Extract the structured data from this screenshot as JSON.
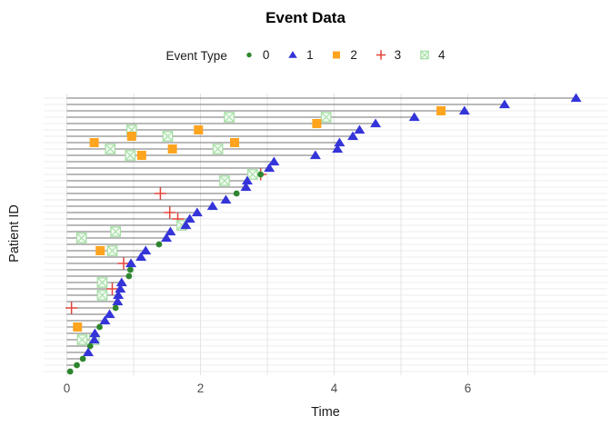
{
  "title": "Event Data",
  "chart_data": {
    "type": "scatter",
    "title": "Event Data",
    "xlabel": "Time",
    "ylabel": "Patient ID",
    "x_ticks": [
      0,
      2,
      4,
      6
    ],
    "xlim": [
      0,
      7.8
    ],
    "grid": "light horizontal line per patient plus vertical gridlines at integer times",
    "legend": {
      "title": "Event Type",
      "position": "top",
      "items": [
        {
          "label": "0",
          "marker": "0"
        },
        {
          "label": "1",
          "marker": "1"
        },
        {
          "label": "2",
          "marker": "2"
        },
        {
          "label": "3",
          "marker": "3"
        },
        {
          "label": "4",
          "marker": "4"
        }
      ]
    },
    "markers": {
      "0": "filled-circle",
      "1": "filled-triangle",
      "2": "filled-square",
      "3": "plus-cross",
      "4": "crossed-open-square"
    },
    "colors": {
      "type0": "#2d862d",
      "type1": "#3434d9",
      "type2": "#ffa41e",
      "type3": "#e04438",
      "type4": "#a6dfa6",
      "type4_fill": "#f2fbf2",
      "track": "#737373",
      "grid_row": "#ededed",
      "grid_v": "#e4e4e4",
      "tick_text": "#4d4d4d"
    },
    "patients": [
      {
        "end": 7.62,
        "end_type": "1",
        "events": []
      },
      {
        "end": 6.55,
        "end_type": "1",
        "events": []
      },
      {
        "end": 5.95,
        "end_type": "1",
        "events": [
          {
            "type": "2",
            "t": 5.6
          }
        ]
      },
      {
        "end": 5.2,
        "end_type": "1",
        "events": [
          {
            "type": "4",
            "t": 3.88
          },
          {
            "type": "4",
            "t": 2.43
          }
        ]
      },
      {
        "end": 4.62,
        "end_type": "1",
        "events": [
          {
            "type": "2",
            "t": 3.74
          }
        ]
      },
      {
        "end": 4.38,
        "end_type": "1",
        "events": [
          {
            "type": "2",
            "t": 1.97
          },
          {
            "type": "4",
            "t": 0.97
          }
        ]
      },
      {
        "end": 4.28,
        "end_type": "1",
        "events": [
          {
            "type": "2",
            "t": 0.97
          },
          {
            "type": "4",
            "t": 1.51
          }
        ]
      },
      {
        "end": 4.08,
        "end_type": "1",
        "events": [
          {
            "type": "2",
            "t": 2.51
          },
          {
            "type": "2",
            "t": 0.41
          }
        ]
      },
      {
        "end": 4.05,
        "end_type": "1",
        "events": [
          {
            "type": "4",
            "t": 0.65
          },
          {
            "type": "2",
            "t": 1.58
          },
          {
            "type": "4",
            "t": 2.26
          }
        ]
      },
      {
        "end": 3.72,
        "end_type": "1",
        "events": [
          {
            "type": "4",
            "t": 0.95
          },
          {
            "type": "2",
            "t": 1.12
          }
        ]
      },
      {
        "end": 3.1,
        "end_type": "1",
        "events": []
      },
      {
        "end": 3.03,
        "end_type": "1",
        "events": []
      },
      {
        "end": 2.9,
        "end_type": "0",
        "events": [
          {
            "type": "3",
            "t": 2.9
          },
          {
            "type": "4",
            "t": 2.78
          }
        ]
      },
      {
        "end": 2.7,
        "end_type": "1",
        "events": [
          {
            "type": "4",
            "t": 2.36
          }
        ]
      },
      {
        "end": 2.68,
        "end_type": "1",
        "events": []
      },
      {
        "end": 2.54,
        "end_type": "0",
        "events": [
          {
            "type": "3",
            "t": 1.4
          }
        ]
      },
      {
        "end": 2.38,
        "end_type": "1",
        "events": []
      },
      {
        "end": 2.18,
        "end_type": "1",
        "events": []
      },
      {
        "end": 1.95,
        "end_type": "1",
        "events": [
          {
            "type": "3",
            "t": 1.54
          }
        ]
      },
      {
        "end": 1.84,
        "end_type": "1",
        "events": [
          {
            "type": "3",
            "t": 1.66
          }
        ]
      },
      {
        "end": 1.78,
        "end_type": "1",
        "events": [
          {
            "type": "4",
            "t": 1.72
          }
        ]
      },
      {
        "end": 1.55,
        "end_type": "1",
        "events": [
          {
            "type": "4",
            "t": 0.73
          }
        ]
      },
      {
        "end": 1.49,
        "end_type": "1",
        "events": [
          {
            "type": "4",
            "t": 0.22
          }
        ]
      },
      {
        "end": 1.38,
        "end_type": "0",
        "events": []
      },
      {
        "end": 1.18,
        "end_type": "1",
        "events": [
          {
            "type": "2",
            "t": 0.5
          },
          {
            "type": "4",
            "t": 0.68
          }
        ]
      },
      {
        "end": 1.11,
        "end_type": "1",
        "events": []
      },
      {
        "end": 0.96,
        "end_type": "1",
        "events": [
          {
            "type": "3",
            "t": 0.85
          }
        ]
      },
      {
        "end": 0.95,
        "end_type": "0",
        "events": []
      },
      {
        "end": 0.93,
        "end_type": "0",
        "events": []
      },
      {
        "end": 0.82,
        "end_type": "1",
        "events": [
          {
            "type": "4",
            "t": 0.53
          }
        ]
      },
      {
        "end": 0.8,
        "end_type": "1",
        "events": [
          {
            "type": "3",
            "t": 0.68
          }
        ]
      },
      {
        "end": 0.77,
        "end_type": "1",
        "events": [
          {
            "type": "4",
            "t": 0.53
          }
        ]
      },
      {
        "end": 0.76,
        "end_type": "1",
        "events": []
      },
      {
        "end": 0.73,
        "end_type": "0",
        "events": [
          {
            "type": "3",
            "t": 0.07
          }
        ]
      },
      {
        "end": 0.64,
        "end_type": "1",
        "events": []
      },
      {
        "end": 0.57,
        "end_type": "1",
        "events": []
      },
      {
        "end": 0.49,
        "end_type": "0",
        "events": [
          {
            "type": "2",
            "t": 0.16
          }
        ]
      },
      {
        "end": 0.42,
        "end_type": "1",
        "events": []
      },
      {
        "end": 0.41,
        "end_type": "1",
        "events": [
          {
            "type": "4",
            "t": 0.23
          },
          {
            "type": "4",
            "t": 0.41
          }
        ]
      },
      {
        "end": 0.35,
        "end_type": "0",
        "events": []
      },
      {
        "end": 0.32,
        "end_type": "1",
        "events": []
      },
      {
        "end": 0.24,
        "end_type": "0",
        "events": []
      },
      {
        "end": 0.15,
        "end_type": "0",
        "events": []
      },
      {
        "end": 0.05,
        "end_type": "0",
        "events": []
      }
    ]
  }
}
